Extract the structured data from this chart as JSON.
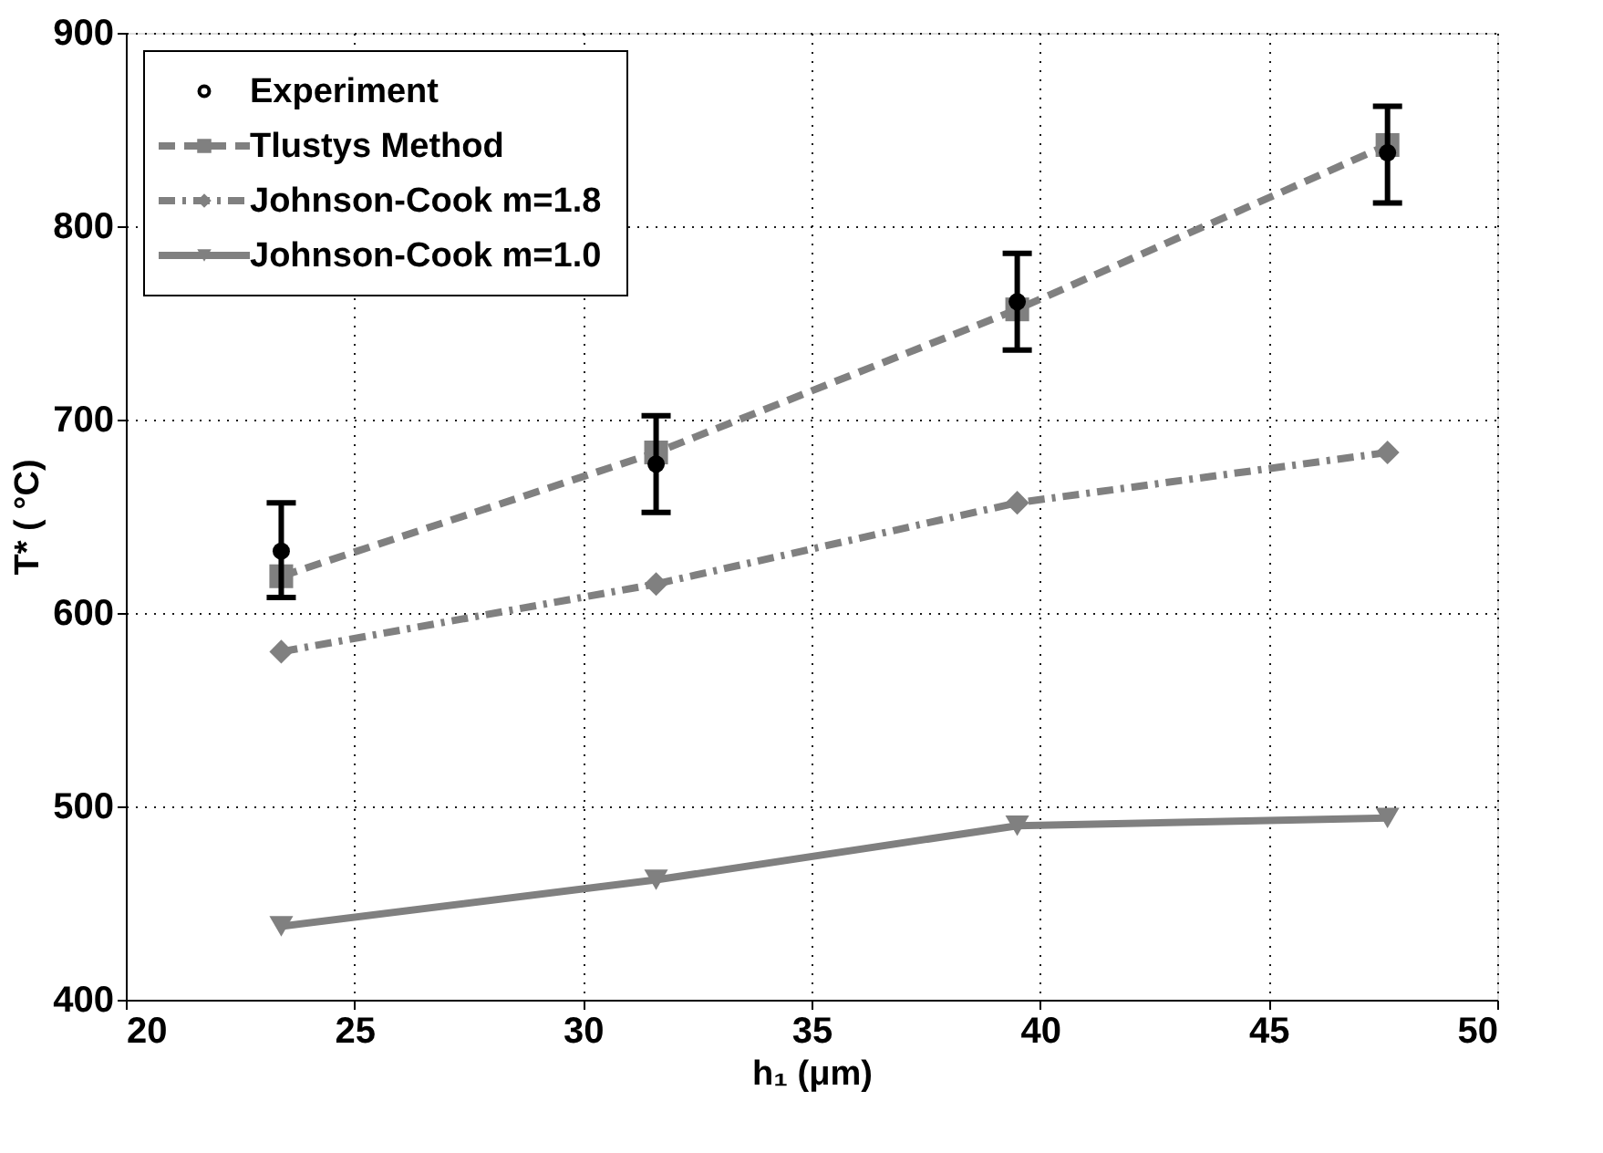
{
  "chart_data": {
    "type": "line",
    "xlabel": "h₁ (μm)",
    "ylabel": "T* ( °C)",
    "x": [
      23.4,
      31.6,
      39.5,
      47.6
    ],
    "series": [
      {
        "name": "Experiment",
        "type": "scatter",
        "color": "#000000",
        "marker": "circle",
        "values": [
          632,
          677,
          761,
          838
        ],
        "errors": [
          [
            608,
            657
          ],
          [
            652,
            702
          ],
          [
            736,
            786
          ],
          [
            812,
            862
          ]
        ]
      },
      {
        "name": "Tlustys Method",
        "color": "#808080",
        "marker": "square",
        "line_style": "dashed",
        "values": [
          619,
          683,
          757,
          842
        ]
      },
      {
        "name": "Johnson-Cook m=1.8",
        "color": "#808080",
        "marker": "diamond",
        "line_style": "dashdot",
        "values": [
          580,
          615,
          657,
          683
        ]
      },
      {
        "name": "Johnson-Cook m=1.0",
        "color": "#808080",
        "marker": "triangle",
        "line_style": "solid",
        "values": [
          438,
          462,
          490,
          494
        ]
      }
    ],
    "xlim": [
      20,
      50
    ],
    "xticks": [
      20,
      25,
      30,
      35,
      40,
      45,
      50
    ],
    "ylim": [
      400,
      900
    ],
    "yticks": [
      400,
      500,
      600,
      700,
      800,
      900
    ],
    "grid": true,
    "legend": "top left"
  }
}
